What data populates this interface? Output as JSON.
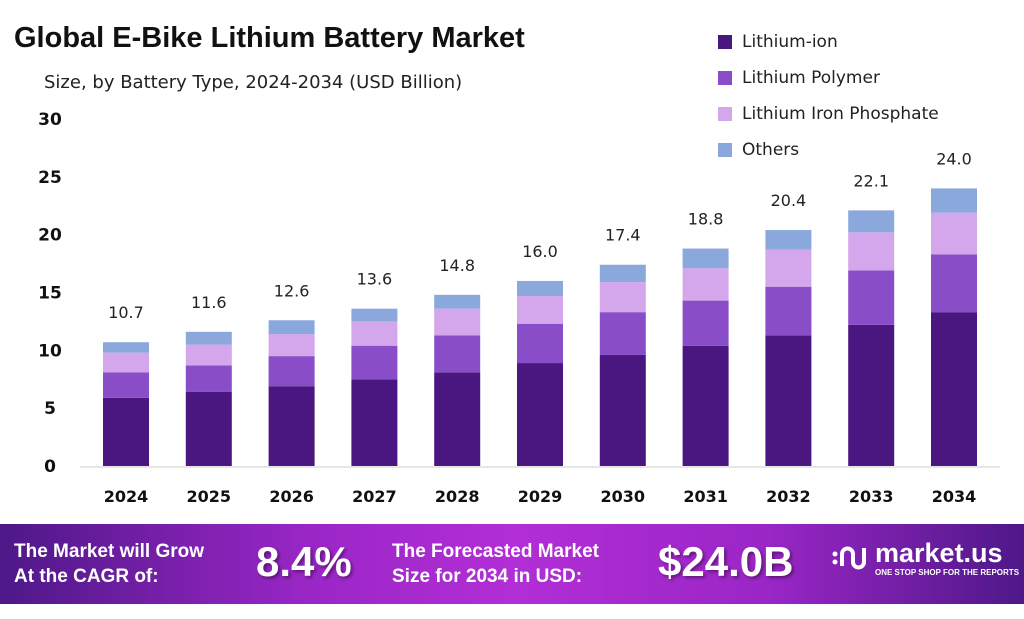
{
  "chart_data": {
    "type": "bar",
    "stacked": true,
    "title": "Global E-Bike Lithium Battery Market",
    "subtitle": "Size, by Battery Type, 2024-2034 (USD Billion)",
    "categories": [
      "2024",
      "2025",
      "2026",
      "2027",
      "2028",
      "2029",
      "2030",
      "2031",
      "2032",
      "2033",
      "2034"
    ],
    "series": [
      {
        "name": "Lithium-ion",
        "color": "#4a1780",
        "values": [
          5.9,
          6.4,
          6.9,
          7.5,
          8.1,
          8.9,
          9.6,
          10.4,
          11.3,
          12.2,
          13.3
        ]
      },
      {
        "name": "Lithium Polymer",
        "color": "#8a4dc8",
        "values": [
          2.2,
          2.3,
          2.6,
          2.9,
          3.2,
          3.4,
          3.7,
          3.9,
          4.2,
          4.7,
          5.0
        ]
      },
      {
        "name": "Lithium Iron Phosphate",
        "color": "#d4a6ec",
        "values": [
          1.7,
          1.8,
          1.9,
          2.1,
          2.3,
          2.4,
          2.6,
          2.8,
          3.2,
          3.3,
          3.6
        ]
      },
      {
        "name": "Others",
        "color": "#8aa8dc",
        "values": [
          0.9,
          1.1,
          1.2,
          1.1,
          1.2,
          1.3,
          1.5,
          1.7,
          1.7,
          1.9,
          2.1
        ]
      }
    ],
    "totals": [
      "10.7",
      "11.6",
      "12.6",
      "13.6",
      "14.8",
      "16.0",
      "17.4",
      "18.8",
      "20.4",
      "22.1",
      "24.0"
    ],
    "ylim": [
      0,
      30
    ],
    "yticks": [
      "0",
      "5",
      "10",
      "15",
      "20",
      "25",
      "30"
    ],
    "grid": false,
    "legend": "top-right"
  },
  "footer": {
    "cagr_label_1": "The Market will Grow",
    "cagr_label_2": "At the CAGR of:",
    "cagr_value": "8.4%",
    "forecast_label_1": "The Forecasted Market",
    "forecast_label_2": "Size for 2034 in USD:",
    "forecast_value": "$24.0B",
    "logo_text": "market.us",
    "logo_tagline": "ONE STOP SHOP FOR THE REPORTS"
  }
}
